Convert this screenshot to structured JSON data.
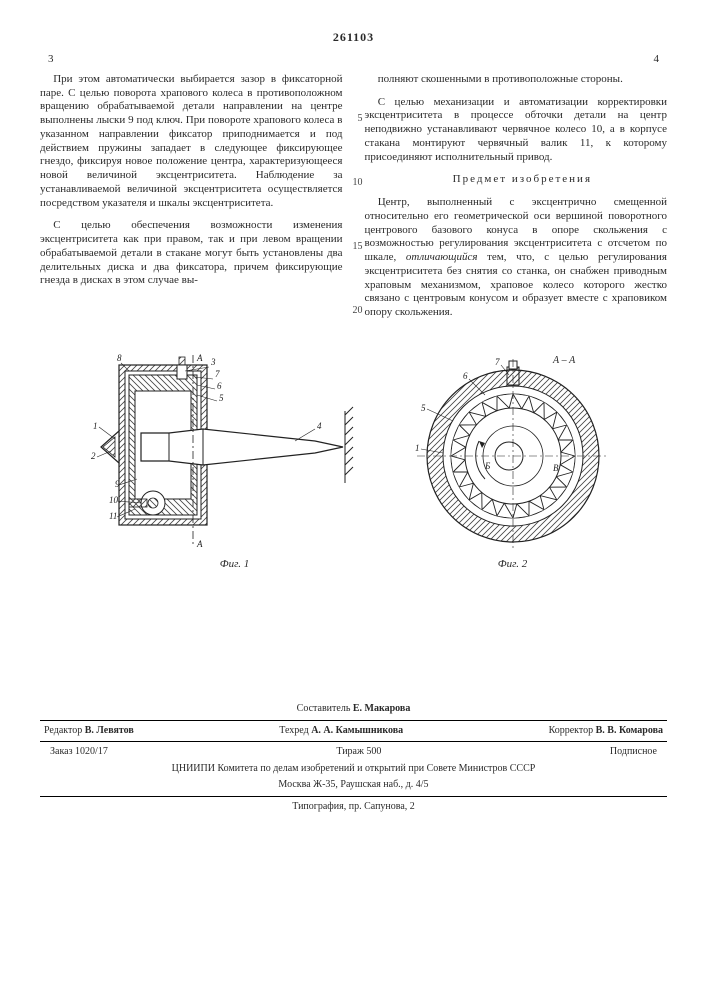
{
  "patent_no": "261103",
  "col_left_no": "3",
  "col_right_no": "4",
  "left": {
    "p1": "При этом автоматически выбирается зазор в фиксаторной паре. С целью поворота храпового колеса в противоположном вращению обрабатываемой детали направлении на центре выполнены лыски 9 под ключ. При повороте храпового колеса в указанном направлении фиксатор приподнимается и под действием пружины западает в следующее фиксирующее гнездо, фиксируя новое положение центра, характеризующееся новой величиной эксцентриситета. Наблюдение за устанавливаемой величиной эксцентриситета осуществляется посредством указателя и шкалы эксцентриситета.",
    "p2": "С целью обеспечения возможности изменения эксцентриситета как при правом, так и при левом вращении обрабатываемой детали в стакане могут быть установлены два делительных диска и два фиксатора, причем фиксирующие гнезда в дисках в этом случае вы-"
  },
  "right": {
    "p1": "полняют скошенными в противоположные стороны.",
    "p2": "С целью механизации и автоматизации корректировки эксцентриситета в процессе обточки детали на центр неподвижно устанавливают червячное колесо 10, а в корпусе стакана монтируют червячный валик 11, к которому присоединяют исполнительный привод.",
    "claim_title": "Предмет изобретения",
    "p3a": "Центр, выполненный с эксцентрично смещенной относительно его геометрической оси вершиной поворотного центрового базового конуса в опоре скольжения с возможностью регулирования эксцентриситета с отсчетом по шкале, ",
    "p3b": "отличающийся",
    "p3c": " тем, что, с целью регулирования эксцентриситета без снятия со станка, он снабжен приводным храповым механизмом, храповое колесо которого жестко связано с центровым конусом и образует вместе с храповиком опору скольжения."
  },
  "linenums": {
    "n5": "5",
    "n10": "10",
    "n15": "15",
    "n20": "20"
  },
  "figs": {
    "fig1_caption": "Фиг. 1",
    "fig2_caption": "Фиг. 2",
    "labels": [
      "1",
      "2",
      "3",
      "4",
      "5",
      "6",
      "7",
      "8",
      "9",
      "10",
      "11"
    ],
    "labelsB": [
      "А",
      "Б",
      "В",
      "5",
      "6",
      "7",
      "А–А"
    ],
    "hatch": "#444",
    "line": "#222",
    "bg": "#fff"
  },
  "footer": {
    "compiler_lbl": "Составитель",
    "compiler": "Е. Макарова",
    "editor_lbl": "Редактор",
    "editor": "В. Левятов",
    "tech_lbl": "Техред",
    "tech": "А. А. Камышникова",
    "corr_lbl": "Корректор",
    "corr": "В. В. Комарова",
    "order": "Заказ 1020/17",
    "tirazh": "Тираж 500",
    "podpisnoe": "Подписное",
    "org1": "ЦНИИПИ Комитета по делам изобретений и открытий при Совете Министров СССР",
    "org2": "Москва Ж-35, Раушская наб., д. 4/5",
    "typo": "Типография, пр. Сапунова, 2"
  }
}
